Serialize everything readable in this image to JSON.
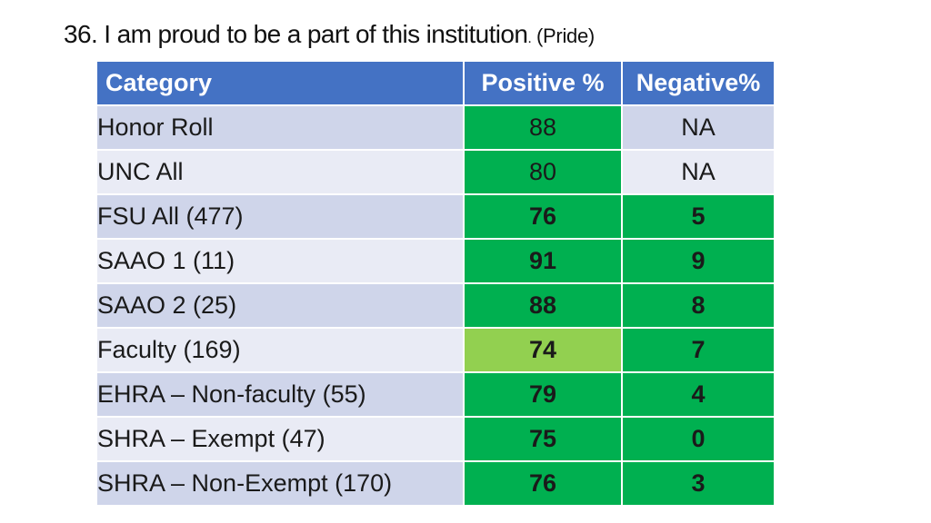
{
  "title": {
    "main": "36. I am proud to be a part of this institution",
    "dot": ".",
    "sub": " (Pride)"
  },
  "table": {
    "headers": [
      "Category",
      "Positive %",
      "Negative%"
    ],
    "rows": [
      {
        "category": "Honor Roll",
        "positive": "88",
        "negative": "NA"
      },
      {
        "category": "UNC All",
        "positive": "80",
        "negative": "NA"
      },
      {
        "category": "FSU All (477)",
        "positive": "76",
        "negative": "5"
      },
      {
        "category": "SAAO 1 (11)",
        "positive": "91",
        "negative": "9"
      },
      {
        "category": "SAAO 2 (25)",
        "positive": "88",
        "negative": "8"
      },
      {
        "category": "Faculty (169)",
        "positive": "74",
        "negative": "7"
      },
      {
        "category": "EHRA – Non-faculty (55)",
        "positive": "79",
        "negative": "4"
      },
      {
        "category": "SHRA – Exempt (47)",
        "positive": "75",
        "negative": "0"
      },
      {
        "category": "SHRA – Non-Exempt (170)",
        "positive": "76",
        "negative": "3"
      }
    ]
  },
  "colors": {
    "header": "#4472c4",
    "row_band_dark": "#cfd5ea",
    "row_band_light": "#e9ebf5",
    "green": "#00b050",
    "light_green": "#92d050"
  }
}
